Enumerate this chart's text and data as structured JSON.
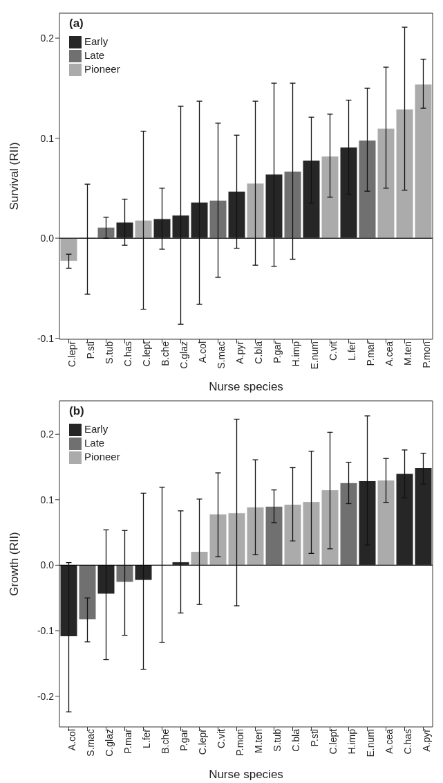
{
  "chart_data": [
    {
      "type": "bar",
      "stacked": true,
      "ylabel": "Survival (RII)",
      "xlabel": "Nurse species",
      "annotations": [
        "(a)"
      ],
      "legend": "top left",
      "ylim": [
        -0.101,
        0.225
      ],
      "yticks": [
        {
          "value": -0.1,
          "label": "-0.1"
        },
        {
          "value": 0,
          "label": "0.0"
        },
        {
          "value": 0.1,
          "label": "0.1"
        },
        {
          "value": 0.2,
          "label": "0.2"
        }
      ],
      "ref_lines": [
        {
          "axis": "y",
          "value": 0,
          "color": "#000000"
        }
      ],
      "categories": [
        "C.lepr",
        "P.sti",
        "S.tub",
        "C.has",
        "C.lept",
        "B.che",
        "C.glaz",
        "A.col",
        "S.mac",
        "A.pyr",
        "C.bla",
        "P.gar",
        "H.imp",
        "E.num",
        "C.vit",
        "L.fer",
        "P.mar",
        "A.cea",
        "M.ten",
        "P.mon"
      ],
      "series": [
        {
          "name": "Early",
          "color": "#262626",
          "values": [
            null,
            0,
            null,
            0.016,
            null,
            0.0195,
            0.023,
            0.036,
            null,
            0.047,
            null,
            0.064,
            null,
            0.078,
            null,
            0.091,
            null,
            null,
            null,
            null
          ],
          "errors": [
            null,
            [
              -0.056,
              0.054
            ],
            null,
            [
              -0.007,
              0.039
            ],
            null,
            [
              -0.011,
              0.05
            ],
            [
              -0.086,
              0.132
            ],
            [
              -0.066,
              0.137
            ],
            null,
            [
              -0.01,
              0.103
            ],
            null,
            [
              -0.028,
              0.155
            ],
            null,
            [
              0.035,
              0.121
            ],
            null,
            [
              0.044,
              0.138
            ],
            null,
            null,
            null,
            null
          ]
        },
        {
          "name": "Late",
          "color": "#707070",
          "values": [
            null,
            null,
            0.011,
            null,
            null,
            null,
            null,
            null,
            0.038,
            null,
            null,
            null,
            0.067,
            null,
            null,
            null,
            0.098,
            null,
            null,
            null
          ],
          "errors": [
            null,
            null,
            [
              0,
              0.021
            ],
            null,
            null,
            null,
            null,
            null,
            [
              -0.039,
              0.115
            ],
            null,
            null,
            null,
            [
              -0.021,
              0.155
            ],
            null,
            null,
            null,
            [
              0.047,
              0.15
            ],
            null,
            null,
            null
          ]
        },
        {
          "name": "Pioneer",
          "color": "#ababab",
          "values": [
            -0.023,
            null,
            null,
            null,
            0.018,
            null,
            null,
            null,
            null,
            null,
            0.055,
            null,
            null,
            null,
            0.082,
            null,
            null,
            0.11,
            0.129,
            0.154
          ],
          "errors": [
            [
              -0.03,
              -0.016
            ],
            null,
            null,
            null,
            [
              -0.071,
              0.107
            ],
            null,
            null,
            null,
            null,
            null,
            [
              -0.027,
              0.137
            ],
            null,
            null,
            null,
            [
              0.041,
              0.124
            ],
            null,
            null,
            [
              0.05,
              0.171
            ],
            [
              0.048,
              0.211
            ],
            [
              0.13,
              0.179
            ]
          ]
        }
      ]
    },
    {
      "type": "bar",
      "stacked": true,
      "ylabel": "Growth (RII)",
      "xlabel": "Nurse species",
      "annotations": [
        "(b)"
      ],
      "legend": "top left",
      "ylim": [
        -0.247,
        0.251
      ],
      "yticks": [
        {
          "value": -0.2,
          "label": "-0.2"
        },
        {
          "value": -0.1,
          "label": "-0.1"
        },
        {
          "value": 0,
          "label": "0.0"
        },
        {
          "value": 0.1,
          "label": "0.1"
        },
        {
          "value": 0.2,
          "label": "0.2"
        }
      ],
      "ref_lines": [
        {
          "axis": "y",
          "value": 0,
          "color": "#000000"
        }
      ],
      "categories": [
        "A.col",
        "S.mac",
        "C.glaz",
        "P.mar",
        "L.fer",
        "B.che",
        "P.gar",
        "C.lepr",
        "C.vit",
        "P.mon",
        "M.ten",
        "S.tub",
        "C.bla",
        "P.sti",
        "C.lept",
        "H.imp",
        "E.num",
        "A.cea",
        "C.has",
        "A.pyr"
      ],
      "series": [
        {
          "name": "Early",
          "color": "#262626",
          "values": [
            -0.109,
            null,
            -0.044,
            null,
            -0.023,
            0,
            0.005,
            null,
            null,
            null,
            null,
            null,
            null,
            null,
            null,
            null,
            0.129,
            null,
            0.14,
            0.149
          ],
          "errors": [
            [
              -0.224,
              0.004
            ],
            null,
            [
              -0.144,
              0.054
            ],
            null,
            [
              -0.159,
              0.11
            ],
            [
              -0.118,
              0.119
            ],
            [
              -0.073,
              0.083
            ],
            null,
            null,
            null,
            null,
            null,
            null,
            null,
            null,
            null,
            [
              0.031,
              0.228
            ],
            null,
            [
              0.103,
              0.176
            ],
            [
              0.124,
              0.171
            ]
          ]
        },
        {
          "name": "Late",
          "color": "#707070",
          "values": [
            null,
            -0.083,
            null,
            -0.026,
            null,
            null,
            null,
            null,
            null,
            null,
            null,
            0.09,
            null,
            null,
            null,
            0.126,
            null,
            null,
            null,
            null
          ],
          "errors": [
            null,
            [
              -0.117,
              -0.05
            ],
            null,
            [
              -0.107,
              0.053
            ],
            null,
            null,
            null,
            null,
            null,
            null,
            null,
            [
              0.065,
              0.115
            ],
            null,
            null,
            null,
            [
              0.094,
              0.157
            ],
            null,
            null,
            null,
            null
          ]
        },
        {
          "name": "Pioneer",
          "color": "#ababab",
          "values": [
            null,
            null,
            null,
            null,
            null,
            null,
            null,
            0.021,
            0.078,
            0.08,
            0.089,
            null,
            0.093,
            0.097,
            0.115,
            null,
            null,
            0.13,
            null,
            null
          ],
          "errors": [
            null,
            null,
            null,
            null,
            null,
            null,
            null,
            [
              -0.06,
              0.101
            ],
            [
              0.013,
              0.141
            ],
            [
              -0.062,
              0.223
            ],
            [
              0.016,
              0.161
            ],
            null,
            [
              0.037,
              0.149
            ],
            [
              0.018,
              0.174
            ],
            [
              0.025,
              0.203
            ],
            null,
            null,
            [
              0.096,
              0.163
            ],
            null,
            null
          ]
        }
      ]
    }
  ]
}
